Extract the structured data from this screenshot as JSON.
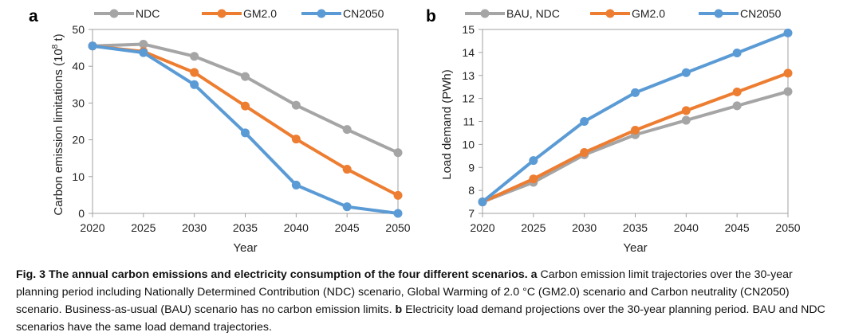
{
  "colors": {
    "ndc_bau": "#a5a5a5",
    "gm2": "#ed7d31",
    "cn2050": "#5b9bd5",
    "axis": "#a0a0a0"
  },
  "chart_data": [
    {
      "panel_letter": "a",
      "type": "line",
      "title": "",
      "xlabel": "Year",
      "ylabel_main": "Carbon emission limitations  (10",
      "ylabel_sup": "8",
      "ylabel_end": " t)",
      "x": [
        2020,
        2025,
        2030,
        2035,
        2040,
        2045,
        2050
      ],
      "xlim": [
        2020,
        2050
      ],
      "ylim": [
        0,
        50
      ],
      "yticks": [
        0,
        10,
        20,
        30,
        40,
        50
      ],
      "grid": false,
      "legend_position": "top",
      "series": [
        {
          "name": "NDC",
          "color_key": "ndc_bau",
          "values": [
            45.5,
            46,
            42.7,
            37.2,
            29.4,
            22.8,
            16.5
          ]
        },
        {
          "name": "GM2.0",
          "color_key": "gm2",
          "values": [
            45.5,
            44,
            38.3,
            29.2,
            20.2,
            12,
            4.9
          ]
        },
        {
          "name": "CN2050",
          "color_key": "cn2050",
          "values": [
            45.5,
            43.7,
            35,
            21.9,
            7.7,
            1.8,
            0
          ]
        }
      ]
    },
    {
      "panel_letter": "b",
      "type": "line",
      "title": "",
      "xlabel": "Year",
      "ylabel_main": "Load demand (PWh)",
      "ylabel_sup": "",
      "ylabel_end": "",
      "x": [
        2020,
        2025,
        2030,
        2035,
        2040,
        2045,
        2050
      ],
      "xlim": [
        2020,
        2050
      ],
      "ylim": [
        7,
        15
      ],
      "yticks": [
        7,
        8,
        9,
        10,
        11,
        12,
        13,
        14,
        15
      ],
      "grid": false,
      "legend_position": "top",
      "series": [
        {
          "name": "BAU, NDC",
          "color_key": "ndc_bau",
          "values": [
            7.5,
            8.35,
            9.55,
            10.42,
            11.05,
            11.68,
            12.3
          ]
        },
        {
          "name": "GM2.0",
          "color_key": "gm2",
          "values": [
            7.5,
            8.5,
            9.65,
            10.62,
            11.47,
            12.28,
            13.1
          ]
        },
        {
          "name": "CN2050",
          "color_key": "cn2050",
          "values": [
            7.5,
            9.3,
            11.0,
            12.25,
            13.12,
            13.98,
            14.85
          ]
        }
      ]
    }
  ],
  "caption": {
    "label": "Fig. 3 The annual carbon emissions and electricity consumption of the four different scenarios.",
    "a_letter": "a",
    "a_text": " Carbon emission limit trajectories over the 30-year planning period including Nationally Determined Contribution (NDC) scenario, Global Warming of 2.0 °C (GM2.0) scenario and Carbon neutrality (CN2050) scenario. Business-as-usual (BAU) scenario has no carbon emission limits.",
    "b_letter": "b",
    "b_text": " Electricity load demand projections over the 30-year planning period. BAU and NDC scenarios have the same load demand trajectories."
  }
}
